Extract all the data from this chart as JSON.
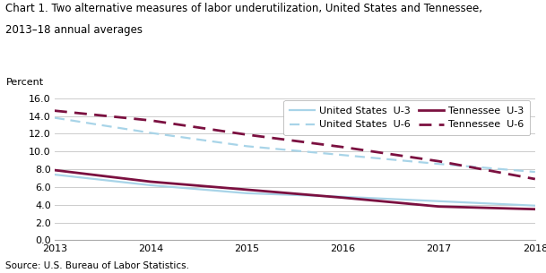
{
  "title_line1": "Chart 1. Two alternative measures of labor underutilization, United States and Tennessee,",
  "title_line2": "2013–18 annual averages",
  "ylabel": "Percent",
  "source": "Source: U.S. Bureau of Labor Statistics.",
  "years": [
    2013,
    2014,
    2015,
    2016,
    2017,
    2018
  ],
  "us_u3": [
    7.4,
    6.2,
    5.3,
    4.9,
    4.4,
    3.9
  ],
  "us_u6": [
    13.8,
    12.1,
    10.6,
    9.6,
    8.6,
    7.7
  ],
  "tn_u3": [
    7.9,
    6.6,
    5.7,
    4.8,
    3.8,
    3.5
  ],
  "tn_u6": [
    14.6,
    13.5,
    11.9,
    10.5,
    8.9,
    6.9
  ],
  "us_color": "#a8d4e8",
  "tn_color": "#7b1040",
  "ylim": [
    0.0,
    16.0
  ],
  "yticks": [
    0.0,
    2.0,
    4.0,
    6.0,
    8.0,
    10.0,
    12.0,
    14.0,
    16.0
  ],
  "title_fontsize": 8.5,
  "axis_fontsize": 8,
  "legend_fontsize": 8,
  "source_fontsize": 7.5,
  "ylabel_fontsize": 8
}
